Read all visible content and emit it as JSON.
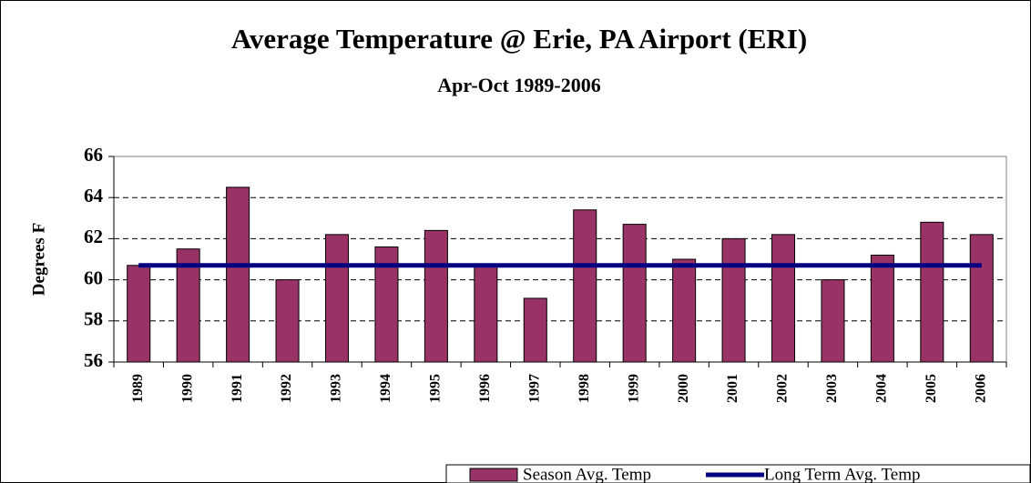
{
  "chart_data": {
    "type": "bar",
    "title": "Average Temperature @ Erie, PA Airport (ERI)",
    "subtitle": "Apr-Oct 1989-2006",
    "y_label": "Degrees F",
    "categories": [
      "1989",
      "1990",
      "1991",
      "1992",
      "1993",
      "1994",
      "1995",
      "1996",
      "1997",
      "1998",
      "1999",
      "2000",
      "2001",
      "2002",
      "2003",
      "2004",
      "2005",
      "2006"
    ],
    "series": [
      {
        "name": "Season Avg. Temp",
        "type": "bar",
        "color": "#993366",
        "values": [
          60.7,
          61.5,
          64.5,
          60.0,
          62.2,
          61.6,
          62.4,
          60.7,
          59.1,
          63.4,
          62.7,
          61.0,
          62.0,
          62.2,
          60.0,
          61.2,
          62.8,
          62.2
        ]
      },
      {
        "name": "Long Term Avg. Temp",
        "type": "line",
        "color": "#000080",
        "values": [
          60.7,
          60.7,
          60.7,
          60.7,
          60.7,
          60.7,
          60.7,
          60.7,
          60.7,
          60.7,
          60.7,
          60.7,
          60.7,
          60.7,
          60.7,
          60.7,
          60.7,
          60.7
        ]
      }
    ],
    "ylim": [
      56,
      66
    ],
    "yticks": [
      56,
      58,
      60,
      62,
      64,
      66
    ],
    "grid": true,
    "legend": "bottom-right"
  }
}
